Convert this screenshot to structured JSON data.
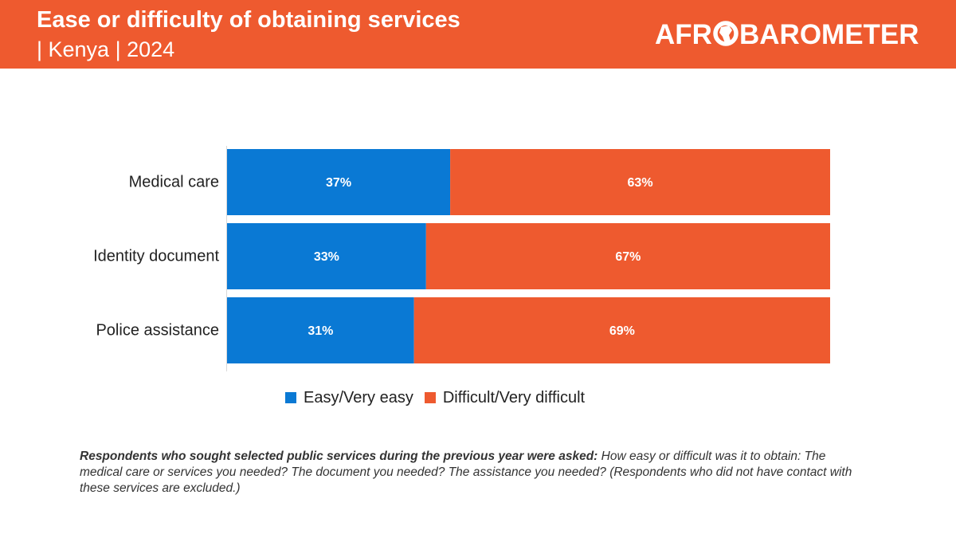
{
  "header": {
    "title": "Ease or difficulty of obtaining services",
    "subtitle": "| Kenya | 2024",
    "logo_text": "AFROBAROMETER",
    "background_color": "#EE5A2F"
  },
  "chart_data": {
    "type": "bar",
    "orientation": "horizontal",
    "stacked": true,
    "normalized_percent": true,
    "categories": [
      "Medical care",
      "Identity document",
      "Police assistance"
    ],
    "series": [
      {
        "name": "Easy/Very easy",
        "color": "#0A79D4",
        "values": [
          37,
          33,
          31
        ],
        "labels": [
          "37%",
          "33%",
          "31%"
        ]
      },
      {
        "name": "Difficult/Very difficult",
        "color": "#EE5A2F",
        "values": [
          63,
          67,
          69
        ],
        "labels": [
          "63%",
          "67%",
          "69%"
        ]
      }
    ],
    "xlim": [
      0,
      100
    ],
    "grid": false,
    "legend": "bottom"
  },
  "note": {
    "lead": "Respondents who sought selected public services during the previous year were asked:",
    "text": "How easy or difficult was it to obtain: The medical care or services you needed? The document you needed? The assistance you needed? (Respondents who did not have contact with these services are excluded.)"
  }
}
